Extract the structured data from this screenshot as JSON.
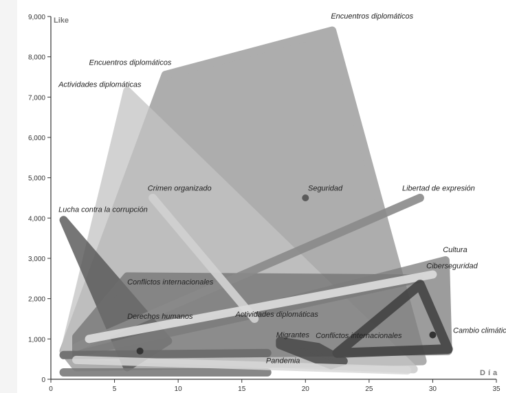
{
  "chart_data": {
    "type": "area",
    "title": "",
    "xlabel": "Día",
    "ylabel": "Like",
    "xlim": [
      0,
      35
    ],
    "ylim": [
      0,
      9000
    ],
    "x_ticks": [
      0,
      5,
      10,
      15,
      20,
      25,
      30,
      35
    ],
    "y_ticks": [
      0,
      1000,
      2000,
      3000,
      4000,
      5000,
      6000,
      7000,
      8000,
      9000
    ],
    "grid": false,
    "groups": [
      {
        "label": "Encuentros diplomáticos",
        "color": "#a9a9a9",
        "opacity": 0.95,
        "shape": "polygon",
        "points": [
          [
            9,
            7550
          ],
          [
            22.1,
            8650
          ],
          [
            29.2,
            450
          ],
          [
            2,
            300
          ],
          [
            1,
            700
          ]
        ],
        "label_at": [
          [
            3,
            7800
          ],
          [
            22,
            8950
          ]
        ]
      },
      {
        "label": "Actividades diplomáticas",
        "color": "#c4c4c4",
        "opacity": 0.75,
        "shape": "polygon",
        "points": [
          [
            6,
            7150
          ],
          [
            28.5,
            250
          ],
          [
            1,
            600
          ]
        ],
        "label_at": [
          [
            0.6,
            7250
          ],
          [
            14.5,
            1550
          ]
        ]
      },
      {
        "label": "Lucha contra la corrupción",
        "color": "#555555",
        "opacity": 0.8,
        "shape": "polygon",
        "points": [
          [
            1,
            3950
          ],
          [
            9.2,
            950
          ],
          [
            6,
            300
          ]
        ],
        "label_at": [
          [
            0.6,
            4150
          ]
        ]
      },
      {
        "label": "Conflictos internacionales",
        "color": "#6e6e6e",
        "opacity": 0.7,
        "shape": "polygon",
        "points": [
          [
            2,
            1050
          ],
          [
            6,
            2550
          ],
          [
            29,
            2500
          ],
          [
            2,
            650
          ]
        ],
        "label_at": [
          [
            6,
            2350
          ],
          [
            20.8,
            1020
          ]
        ]
      },
      {
        "label": "Cultura",
        "color": "#7c7c7c",
        "opacity": 0.75,
        "shape": "polygon",
        "points": [
          [
            2,
            600
          ],
          [
            31,
            2950
          ],
          [
            31.2,
            700
          ],
          [
            17,
            650
          ]
        ],
        "label_at": [
          [
            30.8,
            3150
          ]
        ]
      },
      {
        "label": "Libertad de expresión",
        "color": "#8a8a8a",
        "opacity": 0.9,
        "shape": "line",
        "points": [
          [
            2,
            800
          ],
          [
            29,
            4500
          ]
        ],
        "label_at": [
          [
            27.6,
            4680
          ]
        ]
      },
      {
        "label": "Crimen organizado",
        "color": "#d0d0d0",
        "opacity": 0.95,
        "shape": "line",
        "points": [
          [
            8,
            4500
          ],
          [
            16,
            1500
          ]
        ],
        "label_at": [
          [
            7.6,
            4680
          ]
        ]
      },
      {
        "label": "Ciberseguridad",
        "color": "#dadada",
        "opacity": 0.95,
        "shape": "line",
        "points": [
          [
            3,
            1000
          ],
          [
            30,
            2600
          ]
        ],
        "label_at": [
          [
            29.5,
            2750
          ]
        ]
      },
      {
        "label": "Cambio climático",
        "color": "#3e3e3e",
        "opacity": 0.85,
        "shape": "frame",
        "points": [
          [
            29,
            2350
          ],
          [
            31.2,
            750
          ],
          [
            22.5,
            650
          ]
        ],
        "label_at": [
          [
            31.6,
            1150
          ]
        ]
      },
      {
        "label": "Migrantes",
        "color": "#4a4a4a",
        "opacity": 0.85,
        "shape": "polygon",
        "points": [
          [
            18,
            950
          ],
          [
            21,
            800
          ],
          [
            23,
            450
          ],
          [
            22,
            350
          ],
          [
            18,
            850
          ]
        ],
        "label_at": [
          [
            17.7,
            1040
          ]
        ]
      },
      {
        "label": "Pandemia",
        "color": "#6a6a6a",
        "opacity": 0.9,
        "shape": "line",
        "points": [
          [
            1,
            600
          ],
          [
            17,
            650
          ]
        ],
        "label_at": [
          [
            16.9,
            400
          ]
        ]
      },
      {
        "label": "",
        "color": "#7a7a7a",
        "opacity": 0.9,
        "shape": "line",
        "points": [
          [
            1,
            170
          ],
          [
            17,
            170
          ]
        ],
        "label_at": []
      },
      {
        "label": "",
        "color": "#d8d8d8",
        "opacity": 0.85,
        "shape": "line",
        "points": [
          [
            2,
            480
          ],
          [
            28,
            220
          ]
        ],
        "label_at": []
      },
      {
        "label": "Seguridad",
        "color": "#5a5a5a",
        "opacity": 1,
        "shape": "dot",
        "points": [
          [
            20,
            4500
          ]
        ],
        "label_at": [
          [
            20.2,
            4680
          ]
        ]
      },
      {
        "label": "Derechos humanos",
        "color": "#333333",
        "opacity": 1,
        "shape": "dot",
        "points": [
          [
            7,
            700
          ]
        ],
        "label_at": [
          [
            6,
            1500
          ]
        ]
      },
      {
        "label": "",
        "color": "#333333",
        "opacity": 1,
        "shape": "dot",
        "points": [
          [
            30,
            1100
          ]
        ],
        "label_at": []
      }
    ]
  }
}
